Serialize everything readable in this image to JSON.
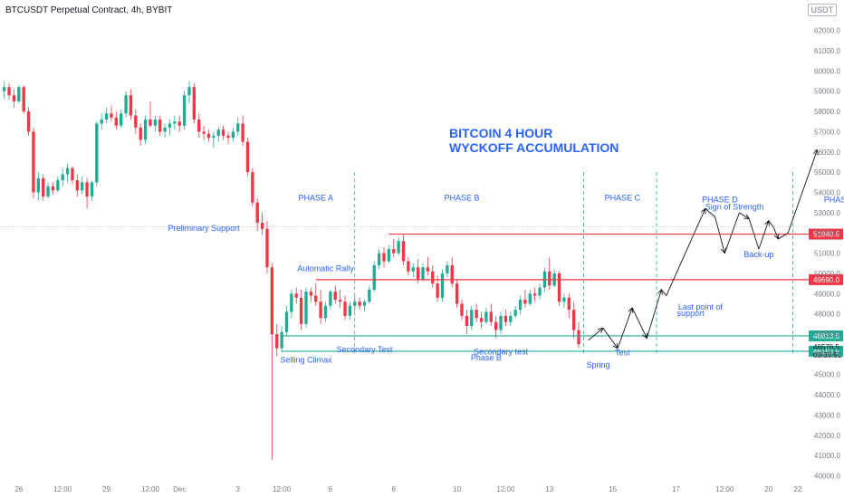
{
  "header": {
    "title": "BTCUSDT Perpetual Contract, 4h, BYBIT",
    "currency_badge": "USDT"
  },
  "chart_data": {
    "type": "candlestick",
    "title": "BITCOIN 4 HOUR",
    "subtitle": "WYCKOFF ACCUMULATION",
    "y_axis": {
      "ticks": [
        62000,
        61000,
        60000,
        59000,
        58000,
        57000,
        56000,
        55000,
        54000,
        53000,
        52000,
        51000,
        50000,
        49000,
        48000,
        47000,
        46000,
        45000,
        44000,
        43000,
        42000,
        41000,
        40000
      ],
      "tick_labels": [
        "62000.0",
        "61000.0",
        "60000.0",
        "59000.0",
        "58000.0",
        "57000.0",
        "56000.0",
        "55000.0",
        "54000.0",
        "53000.0",
        "52000.0",
        "51000.0",
        "50000.0",
        "49000.0",
        "48000.0",
        "47000.0",
        "46000.0",
        "45000.0",
        "44000.0",
        "43000.0",
        "42000.0",
        "41000.0",
        "40000.0"
      ],
      "ylim": [
        39800,
        62700
      ]
    },
    "x_axis": {
      "range_index": [
        0,
        164
      ],
      "ticks": [
        {
          "i": 3,
          "label": "26"
        },
        {
          "i": 12,
          "label": "12:00"
        },
        {
          "i": 21,
          "label": "29"
        },
        {
          "i": 30,
          "label": "12:00"
        },
        {
          "i": 36,
          "label": "Dec"
        },
        {
          "i": 48,
          "label": "3"
        },
        {
          "i": 57,
          "label": "12:00"
        },
        {
          "i": 67,
          "label": "6"
        },
        {
          "i": 80,
          "label": "8"
        },
        {
          "i": 93,
          "label": "10"
        },
        {
          "i": 103,
          "label": "12:00"
        },
        {
          "i": 112,
          "label": "13"
        },
        {
          "i": 125,
          "label": "15"
        },
        {
          "i": 138,
          "label": "17"
        },
        {
          "i": 148,
          "label": "12:00"
        },
        {
          "i": 157,
          "label": "20"
        },
        {
          "i": 170,
          "label": "22"
        }
      ]
    },
    "candles": [
      [
        59000,
        59500,
        58600,
        59200
      ],
      [
        59200,
        59400,
        58600,
        58800
      ],
      [
        58800,
        59100,
        58200,
        58500
      ],
      [
        58500,
        59300,
        58400,
        59200
      ],
      [
        59200,
        59300,
        57900,
        58000
      ],
      [
        58000,
        58200,
        56800,
        57000
      ],
      [
        57000,
        57200,
        53700,
        54000
      ],
      [
        54000,
        55000,
        53600,
        54700
      ],
      [
        54700,
        54900,
        53600,
        53800
      ],
      [
        53800,
        54500,
        53700,
        54300
      ],
      [
        54300,
        54500,
        53900,
        54100
      ],
      [
        54100,
        54800,
        54000,
        54600
      ],
      [
        54600,
        55200,
        54300,
        54900
      ],
      [
        54900,
        55400,
        54500,
        55200
      ],
      [
        55200,
        55300,
        54400,
        54600
      ],
      [
        54600,
        54900,
        53800,
        54100
      ],
      [
        54100,
        54800,
        53900,
        54500
      ],
      [
        54500,
        54700,
        53200,
        53800
      ],
      [
        53800,
        54600,
        53600,
        54500
      ],
      [
        54500,
        57500,
        54300,
        57400
      ],
      [
        57400,
        57900,
        57100,
        57600
      ],
      [
        57600,
        58200,
        57400,
        57900
      ],
      [
        57900,
        58300,
        57500,
        57700
      ],
      [
        57700,
        58000,
        57100,
        57300
      ],
      [
        57300,
        58100,
        57200,
        57900
      ],
      [
        57900,
        59000,
        57700,
        58800
      ],
      [
        58800,
        59100,
        57600,
        57800
      ],
      [
        57800,
        58100,
        56900,
        57200
      ],
      [
        57200,
        57400,
        56300,
        56600
      ],
      [
        56600,
        57800,
        56400,
        57600
      ],
      [
        57600,
        58500,
        57200,
        57300
      ],
      [
        57300,
        57800,
        57000,
        57600
      ],
      [
        57600,
        57800,
        56800,
        57000
      ],
      [
        57000,
        57400,
        56700,
        57200
      ],
      [
        57200,
        57600,
        56800,
        57400
      ],
      [
        57400,
        57800,
        57100,
        57500
      ],
      [
        57500,
        57800,
        57000,
        57300
      ],
      [
        57300,
        59000,
        57100,
        58800
      ],
      [
        58800,
        59500,
        58400,
        59200
      ],
      [
        59200,
        59400,
        57400,
        57600
      ],
      [
        57600,
        57900,
        56700,
        57000
      ],
      [
        57000,
        57300,
        56600,
        56900
      ],
      [
        56900,
        57100,
        56500,
        56700
      ],
      [
        56700,
        57000,
        56200,
        56800
      ],
      [
        56800,
        57200,
        56500,
        57100
      ],
      [
        57100,
        57300,
        56600,
        56800
      ],
      [
        56800,
        57000,
        56400,
        56700
      ],
      [
        56700,
        57200,
        56500,
        57000
      ],
      [
        57000,
        57700,
        56800,
        57400
      ],
      [
        57400,
        57800,
        56300,
        56500
      ],
      [
        56500,
        56700,
        54800,
        55000
      ],
      [
        55000,
        55200,
        53300,
        53500
      ],
      [
        53500,
        53700,
        52100,
        52500
      ],
      [
        52500,
        53000,
        51900,
        52200
      ],
      [
        52200,
        52600,
        50000,
        50300
      ],
      [
        50300,
        50500,
        40800,
        47000
      ],
      [
        47000,
        47500,
        45900,
        46300
      ],
      [
        46300,
        47400,
        46100,
        47100
      ],
      [
        47100,
        48400,
        46900,
        48100
      ],
      [
        48100,
        49200,
        47800,
        49000
      ],
      [
        49000,
        49300,
        48500,
        48800
      ],
      [
        48800,
        49200,
        47200,
        47500
      ],
      [
        47500,
        49300,
        47300,
        49100
      ],
      [
        49100,
        49300,
        48600,
        48900
      ],
      [
        48900,
        49500,
        48400,
        48600
      ],
      [
        48600,
        49200,
        47500,
        47800
      ],
      [
        47800,
        48600,
        47600,
        48400
      ],
      [
        48400,
        49200,
        48200,
        49100
      ],
      [
        49100,
        49400,
        48500,
        48700
      ],
      [
        48700,
        49200,
        48300,
        48600
      ],
      [
        48600,
        48900,
        47700,
        47900
      ],
      [
        47900,
        48600,
        47700,
        48400
      ],
      [
        48400,
        48900,
        48100,
        48600
      ],
      [
        48600,
        48800,
        48200,
        48400
      ],
      [
        48400,
        48700,
        48100,
        48600
      ],
      [
        48600,
        49400,
        48500,
        49200
      ],
      [
        49200,
        50600,
        49100,
        50400
      ],
      [
        50400,
        51200,
        50200,
        51000
      ],
      [
        51000,
        51300,
        50300,
        50600
      ],
      [
        50600,
        51400,
        50500,
        51200
      ],
      [
        51200,
        51700,
        50800,
        51000
      ],
      [
        51000,
        51800,
        50900,
        51600
      ],
      [
        51600,
        51900,
        50400,
        50600
      ],
      [
        50600,
        50800,
        49900,
        50100
      ],
      [
        50100,
        50500,
        49800,
        50300
      ],
      [
        50300,
        50700,
        49500,
        49700
      ],
      [
        49700,
        50500,
        49600,
        50300
      ],
      [
        50300,
        50800,
        49900,
        50100
      ],
      [
        50100,
        50400,
        49300,
        49500
      ],
      [
        49500,
        49900,
        48600,
        48800
      ],
      [
        48800,
        50200,
        48600,
        50000
      ],
      [
        50000,
        50600,
        49800,
        50400
      ],
      [
        50400,
        50800,
        49300,
        49500
      ],
      [
        49500,
        49700,
        48300,
        48500
      ],
      [
        48500,
        48700,
        47700,
        47900
      ],
      [
        47900,
        48200,
        47000,
        47400
      ],
      [
        47400,
        48400,
        47200,
        48200
      ],
      [
        48200,
        48500,
        47600,
        47800
      ],
      [
        47800,
        48100,
        47300,
        47600
      ],
      [
        47600,
        48300,
        47500,
        48100
      ],
      [
        48100,
        48500,
        47400,
        47600
      ],
      [
        47600,
        47900,
        46800,
        47200
      ],
      [
        47200,
        48100,
        47000,
        47900
      ],
      [
        47900,
        48200,
        47400,
        47600
      ],
      [
        47600,
        48100,
        47400,
        47900
      ],
      [
        47900,
        48400,
        47800,
        48200
      ],
      [
        48200,
        48900,
        48000,
        48700
      ],
      [
        48700,
        49200,
        48300,
        48500
      ],
      [
        48500,
        49200,
        48400,
        49000
      ],
      [
        49000,
        49300,
        48600,
        48900
      ],
      [
        48900,
        49500,
        48700,
        49300
      ],
      [
        49300,
        50300,
        49100,
        50100
      ],
      [
        50100,
        50800,
        49200,
        49400
      ],
      [
        49400,
        50200,
        49300,
        50000
      ],
      [
        50000,
        50100,
        48400,
        48600
      ],
      [
        48600,
        49000,
        48300,
        48800
      ],
      [
        48800,
        49000,
        47800,
        48200
      ],
      [
        48200,
        48600,
        46800,
        47200
      ],
      [
        47200,
        47600,
        46300,
        46500
      ]
    ],
    "horizontal_levels": [
      {
        "name": "resistance-top",
        "value": 51940.5,
        "label": "51940.5",
        "color": "#f23645",
        "start_i": 79
      },
      {
        "name": "resistance-mid",
        "value": 49690.0,
        "label": "49690.0",
        "color": "#f23645",
        "start_i": 64
      },
      {
        "name": "support-top",
        "value": 46913.5,
        "label": "46913.5",
        "color": "#22ab94",
        "start_i": 57
      },
      {
        "name": "support-bottom",
        "value": 46153.5,
        "label": "46153.5",
        "color": "#22ab94",
        "start_i": 57
      }
    ],
    "current_price": {
      "value": "46576.5",
      "countdown": "03:33:51"
    },
    "dotted_level": 52300,
    "phase_dividers_i": [
      72,
      119,
      134,
      162
    ],
    "phase_labels": [
      {
        "text": "PHASE A",
        "i": 64,
        "y": 53600
      },
      {
        "text": "PHASE B",
        "i": 94,
        "y": 53600
      },
      {
        "text": "PHASE C",
        "i": 127,
        "y": 53600
      },
      {
        "text": "PHASE D",
        "i": 147,
        "y": 53500
      },
      {
        "text": "PHASE E",
        "i": 172,
        "y": 53500
      }
    ],
    "annotations": [
      {
        "text": "Preliminary Support",
        "i": 41,
        "y": 52100
      },
      {
        "text": "Automatic Rally",
        "i": 66,
        "y": 50100
      },
      {
        "text": "Selling Climax",
        "i": 62,
        "y": 45600
      },
      {
        "text": "Secondary Test",
        "i": 74,
        "y": 46100
      },
      {
        "text": "Secondary test",
        "i": 102,
        "y": 46000
      },
      {
        "text": "Phase B",
        "i": 99,
        "y": 45700
      },
      {
        "text": "Spring",
        "i": 122,
        "y": 45350
      },
      {
        "text": "Test",
        "i": 127,
        "y": 45950
      },
      {
        "text": "Last point of",
        "i": 143,
        "y": 48200
      },
      {
        "text": "support",
        "i": 141,
        "y": 47900
      },
      {
        "text": "Sign of Strength",
        "i": 150,
        "y": 53150
      },
      {
        "text": "Back-up",
        "i": 155,
        "y": 50800
      }
    ],
    "projection_path": [
      [
        120,
        46700
      ],
      [
        123,
        47300
      ],
      [
        126,
        46300
      ],
      [
        129,
        48300
      ],
      [
        132,
        46800
      ],
      [
        135,
        49200
      ],
      [
        136,
        48900
      ],
      [
        144,
        53200
      ],
      [
        146,
        52800
      ],
      [
        148,
        51000
      ],
      [
        151,
        53000
      ],
      [
        153,
        52700
      ],
      [
        155,
        51200
      ],
      [
        157,
        52600
      ],
      [
        158,
        52300
      ],
      [
        159,
        51700
      ],
      [
        161,
        52000
      ],
      [
        167,
        56100
      ]
    ],
    "arrow_tip_indices": [
      1,
      2,
      3,
      4,
      5,
      7,
      9,
      11,
      13,
      15,
      17
    ]
  }
}
